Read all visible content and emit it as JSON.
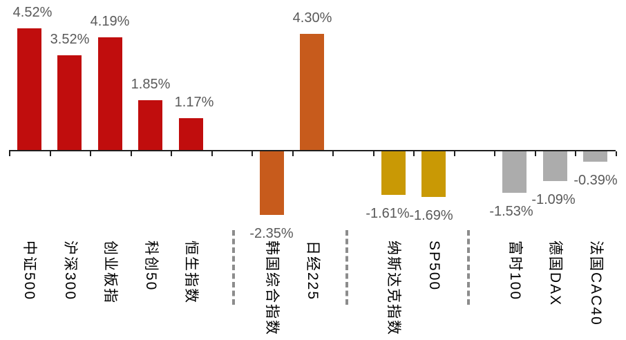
{
  "chart_data": {
    "type": "bar",
    "title": "",
    "unit": "%",
    "grid": false,
    "legend": false,
    "value_axis_hidden": true,
    "ylim": [
      -2.6,
      4.8
    ],
    "colors": {
      "china_red": "#C00D0D",
      "asia_orange": "#C75B1C",
      "us_gold": "#C99905",
      "europe_gray": "#ACACAC",
      "axis": "#1F1F1F",
      "value_label": "#595959",
      "category_label": "#000000",
      "separator": "#8C8C8C"
    },
    "categories": [
      "中证500",
      "沪深300",
      "创业板指",
      "科创50",
      "恒生指数",
      "韩国综合指数",
      "日经225",
      "纳斯达克指数",
      "SP500",
      "富时100",
      "德国DAX",
      "法国CAC40"
    ],
    "values": [
      4.52,
      3.52,
      4.19,
      1.85,
      1.17,
      -2.35,
      4.3,
      -1.61,
      -1.69,
      -1.53,
      -1.09,
      -0.39
    ],
    "bars": [
      {
        "id": "csi500",
        "label": "中证500",
        "value": 4.52,
        "display": "4.52%",
        "color_key": "china_red",
        "slot": 0,
        "label_dx": 5
      },
      {
        "id": "hs300",
        "label": "沪深300",
        "value": 3.52,
        "display": "3.52%",
        "color_key": "china_red",
        "slot": 1,
        "label_dx": 0
      },
      {
        "id": "chinext",
        "label": "创业板指",
        "value": 4.19,
        "display": "4.19%",
        "color_key": "china_red",
        "slot": 2,
        "label_dx": 0
      },
      {
        "id": "star50",
        "label": "科创50",
        "value": 1.85,
        "display": "1.85%",
        "color_key": "china_red",
        "slot": 3,
        "label_dx": 0
      },
      {
        "id": "hsi",
        "label": "恒生指数",
        "value": 1.17,
        "display": "1.17%",
        "color_key": "china_red",
        "slot": 4,
        "label_dx": 5
      },
      {
        "id": "kospi",
        "label": "韩国综合指数",
        "value": -2.35,
        "display": "-2.35%",
        "color_key": "asia_orange",
        "slot": 6,
        "label_dx": 0
      },
      {
        "id": "nikkei225",
        "label": "日经225",
        "value": 4.3,
        "display": "4.30%",
        "color_key": "asia_orange",
        "slot": 7,
        "label_dx": 0
      },
      {
        "id": "nasdaq",
        "label": "纳斯达克指数",
        "value": -1.61,
        "display": "-1.61%",
        "color_key": "us_gold",
        "slot": 9,
        "label_dx": -8
      },
      {
        "id": "sp500",
        "label": "SP500",
        "value": -1.69,
        "display": "-1.69%",
        "color_key": "us_gold",
        "slot": 10,
        "label_dx": -4
      },
      {
        "id": "ftse100",
        "label": "富时100",
        "value": -1.53,
        "display": "-1.53%",
        "color_key": "europe_gray",
        "slot": 12,
        "label_dx": -5
      },
      {
        "id": "dax",
        "label": "德国DAX",
        "value": -1.09,
        "display": "-1.09%",
        "color_key": "europe_gray",
        "slot": 13,
        "label_dx": -2
      },
      {
        "id": "cac40",
        "label": "法国CAC40",
        "value": -0.39,
        "display": "-0.39%",
        "color_key": "europe_gray",
        "slot": 14,
        "label_dx": 0
      }
    ],
    "separators": [
      {
        "between": [
          "恒生指数",
          "韩国综合指数"
        ],
        "x": 336
      },
      {
        "between": [
          "日经225",
          "纳斯达克指数"
        ],
        "x": 500
      },
      {
        "between": [
          "SP500",
          "富时100"
        ],
        "x": 676
      }
    ]
  }
}
